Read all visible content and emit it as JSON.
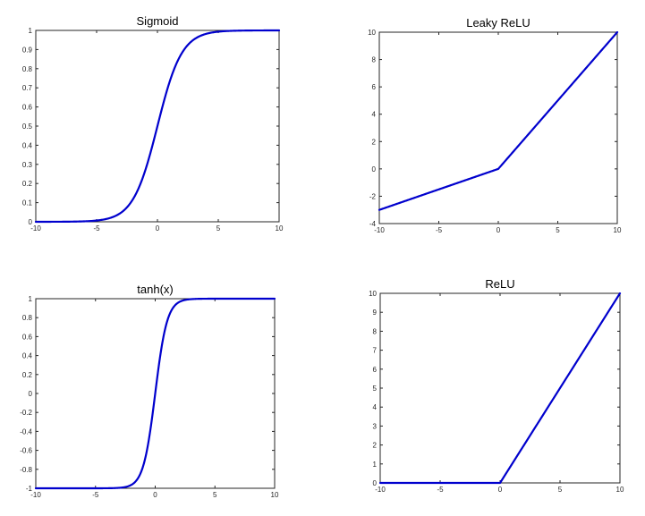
{
  "line_color": "#0000CD",
  "chart_data": [
    {
      "type": "line",
      "title": "Sigmoid",
      "function": "sigmoid",
      "xlim": [
        -10,
        10
      ],
      "ylim": [
        0,
        1
      ],
      "xticks": [
        -10,
        -5,
        0,
        5,
        10
      ],
      "yticks": [
        0,
        0.1,
        0.2,
        0.3,
        0.4,
        0.5,
        0.6,
        0.7,
        0.8,
        0.9,
        1
      ],
      "xtick_labels": [
        "-10",
        "-5",
        "0",
        "5",
        "10"
      ],
      "ytick_labels": [
        "0",
        "0.1",
        "0.2",
        "0.3",
        "0.4",
        "0.5",
        "0.6",
        "0.7",
        "0.8",
        "0.9",
        "1"
      ],
      "x": [
        -10,
        -6,
        -4,
        -3,
        -2,
        -1,
        0,
        1,
        2,
        3,
        4,
        6,
        10
      ],
      "y": [
        5e-05,
        0.0025,
        0.018,
        0.047,
        0.119,
        0.269,
        0.5,
        0.731,
        0.881,
        0.953,
        0.982,
        0.9975,
        0.99995
      ]
    },
    {
      "type": "line",
      "title": "Leaky ReLU",
      "function": "leaky_relu",
      "xlim": [
        -10,
        10
      ],
      "ylim": [
        -4,
        10
      ],
      "xticks": [
        -10,
        -5,
        0,
        5,
        10
      ],
      "yticks": [
        -4,
        -2,
        0,
        2,
        4,
        6,
        8,
        10
      ],
      "xtick_labels": [
        "-10",
        "-5",
        "0",
        "5",
        "10"
      ],
      "ytick_labels": [
        "-4",
        "-2",
        "0",
        "2",
        "4",
        "6",
        "8",
        "10"
      ],
      "x": [
        -10,
        0,
        10
      ],
      "y": [
        -3,
        0,
        10
      ]
    },
    {
      "type": "line",
      "title": "tanh(x)",
      "function": "tanh",
      "xlim": [
        -10,
        10
      ],
      "ylim": [
        -1,
        1
      ],
      "xticks": [
        -10,
        -5,
        0,
        5,
        10
      ],
      "yticks": [
        -1,
        -0.8,
        -0.6,
        -0.4,
        -0.2,
        0,
        0.2,
        0.4,
        0.6,
        0.8,
        1
      ],
      "xtick_labels": [
        "-10",
        "-5",
        "0",
        "5",
        "10"
      ],
      "ytick_labels": [
        "-1",
        "-0.8",
        "-0.6",
        "-0.4",
        "-0.2",
        "0",
        "0.2",
        "0.4",
        "0.6",
        "0.8",
        "1"
      ],
      "x": [
        -10,
        -4,
        -3,
        -2,
        -1,
        0,
        1,
        2,
        3,
        4,
        10
      ],
      "y": [
        -1,
        -0.999,
        -0.995,
        -0.964,
        -0.762,
        0,
        0.762,
        0.964,
        0.995,
        0.999,
        1
      ]
    },
    {
      "type": "line",
      "title": "ReLU",
      "function": "relu",
      "xlim": [
        -10,
        10
      ],
      "ylim": [
        0,
        10
      ],
      "xticks": [
        -10,
        -5,
        0,
        5,
        10
      ],
      "yticks": [
        0,
        1,
        2,
        3,
        4,
        5,
        6,
        7,
        8,
        9,
        10
      ],
      "xtick_labels": [
        "-10",
        "-5",
        "0",
        "5",
        "10"
      ],
      "ytick_labels": [
        "0",
        "1",
        "2",
        "3",
        "4",
        "5",
        "6",
        "7",
        "8",
        "9",
        "10"
      ],
      "x": [
        -10,
        0,
        10
      ],
      "y": [
        0,
        0,
        10
      ]
    }
  ]
}
